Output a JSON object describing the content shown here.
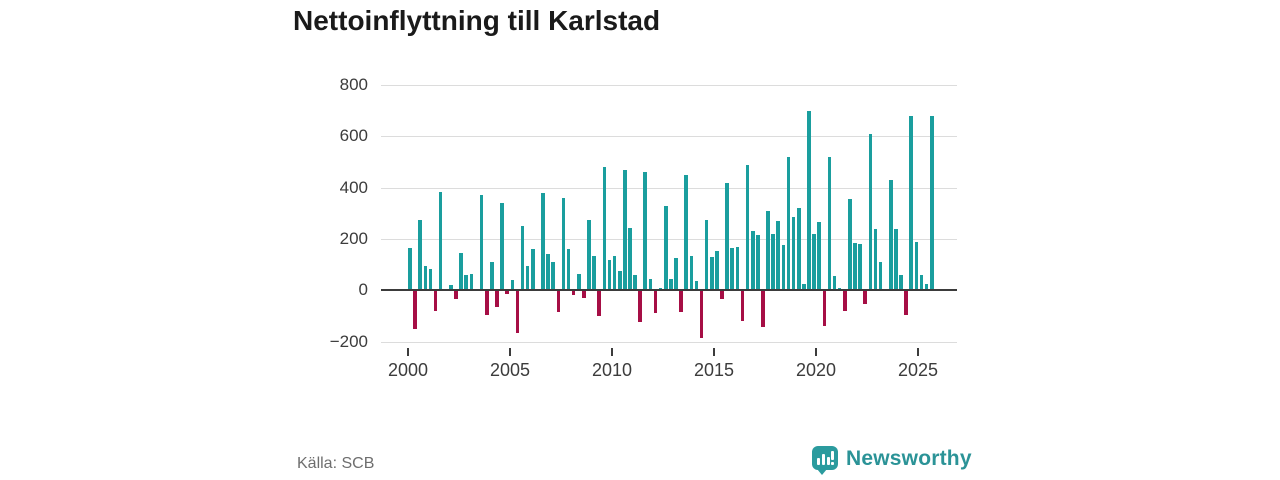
{
  "title": "Nettoinflyttning till Karlstad",
  "source": "Källa: SCB",
  "logo": {
    "text": "Newsworthy"
  },
  "chart_data": {
    "type": "bar",
    "title": "Nettoinflyttning till Karlstad",
    "frequency": "quarterly",
    "start_period": "2000Q1",
    "end_period": "2025Q3",
    "x_tick_labels": [
      "2000",
      "2005",
      "2010",
      "2015",
      "2020",
      "2025"
    ],
    "y_tick_labels": [
      "800",
      "600",
      "400",
      "200",
      "0",
      "−200"
    ],
    "y_tick_values": [
      800,
      600,
      400,
      200,
      0,
      -200
    ],
    "ylim": [
      -200,
      800
    ],
    "grid": true,
    "legend": false,
    "bar_colors": {
      "positive": "#1a9e9e",
      "negative": "#a60e45"
    },
    "values": [
      165,
      -150,
      275,
      95,
      85,
      -80,
      385,
      0,
      20,
      -35,
      145,
      60,
      65,
      0,
      370,
      -95,
      110,
      -65,
      340,
      -15,
      40,
      -165,
      250,
      95,
      160,
      0,
      380,
      140,
      110,
      -85,
      360,
      160,
      -20,
      65,
      -30,
      275,
      135,
      -100,
      480,
      120,
      135,
      75,
      470,
      245,
      60,
      -125,
      460,
      45,
      -90,
      10,
      330,
      45,
      125,
      -85,
      450,
      135,
      35,
      -185,
      275,
      130,
      155,
      -35,
      420,
      165,
      170,
      -120,
      490,
      230,
      215,
      -145,
      310,
      220,
      270,
      175,
      520,
      285,
      320,
      25,
      700,
      220,
      265,
      -140,
      520,
      55,
      10,
      -80,
      355,
      185,
      180,
      -55,
      610,
      240,
      110,
      0,
      430,
      240,
      60,
      -95,
      680,
      190,
      60,
      25,
      680
    ]
  }
}
